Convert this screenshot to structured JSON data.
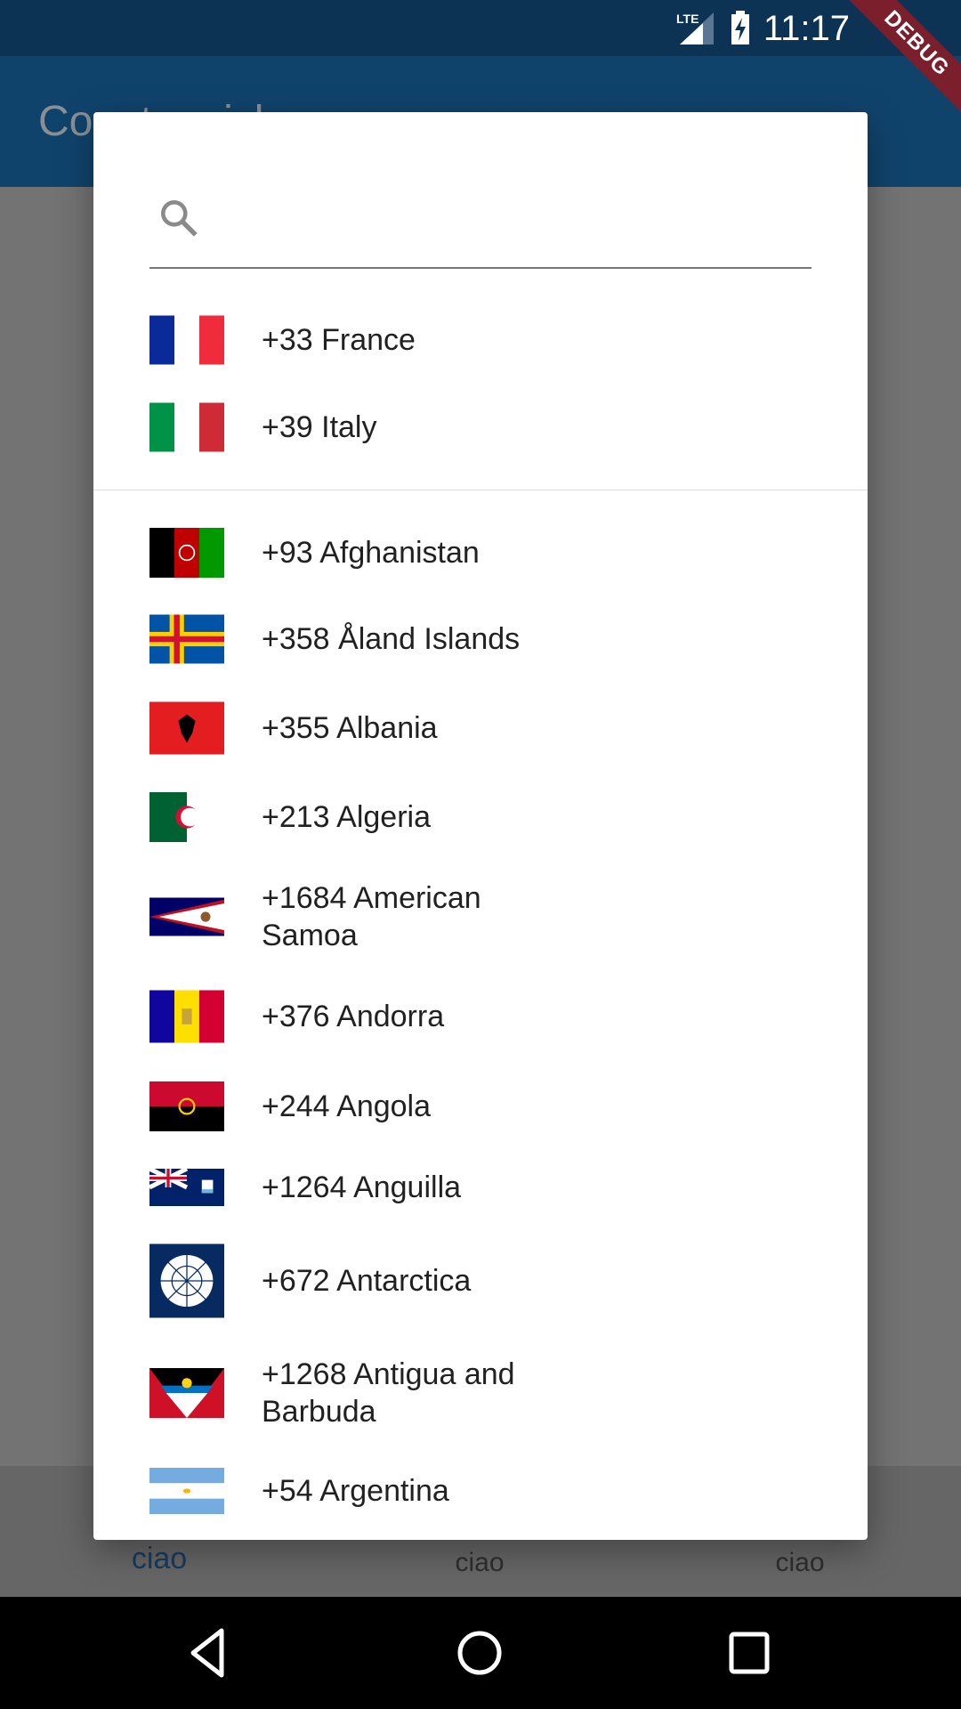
{
  "status_bar": {
    "time": "11:17",
    "network": "LTE",
    "debug_banner": "DEBUG"
  },
  "app_bar": {
    "title": "Country picker"
  },
  "dialog": {
    "search": {
      "placeholder": "",
      "value": "",
      "icon": "search-icon"
    },
    "favorites": [
      {
        "label": "+33 France",
        "flag": "france"
      },
      {
        "label": "+39 Italy",
        "flag": "italy"
      }
    ],
    "countries": [
      {
        "label": "+93 Afghanistan",
        "flag": "afghanistan"
      },
      {
        "label": "+358 Åland Islands",
        "flag": "aland"
      },
      {
        "label": "+355 Albania",
        "flag": "albania"
      },
      {
        "label": "+213 Algeria",
        "flag": "algeria"
      },
      {
        "label": "+1684 American Samoa",
        "flag": "american-samoa"
      },
      {
        "label": "+376 Andorra",
        "flag": "andorra"
      },
      {
        "label": "+244 Angola",
        "flag": "angola"
      },
      {
        "label": "+1264 Anguilla",
        "flag": "anguilla"
      },
      {
        "label": "+672 Antarctica",
        "flag": "antarctica"
      },
      {
        "label": "+1268 Antigua and Barbuda",
        "flag": "antigua"
      },
      {
        "label": "+54 Argentina",
        "flag": "argentina"
      }
    ]
  },
  "bottom_tabs": [
    {
      "label": "ciao",
      "active": true
    },
    {
      "label": "ciao",
      "active": false
    },
    {
      "label": "ciao",
      "active": false
    }
  ],
  "nav_bar": {
    "back": "back-icon",
    "home": "home-icon",
    "recents": "recents-icon"
  },
  "colors": {
    "status_bar": "#0c3254",
    "app_bar": "#10436c",
    "accent": "#173c60",
    "debug": "#7a1f2b"
  }
}
